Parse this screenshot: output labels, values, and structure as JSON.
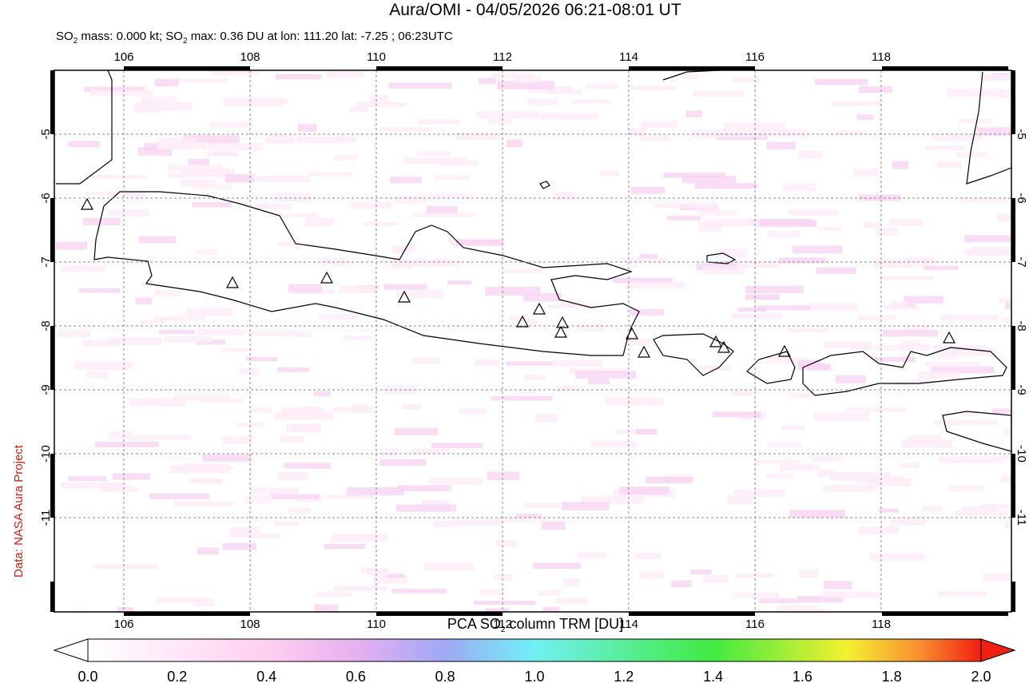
{
  "header": {
    "title": "Aura/OMI - 04/05/2026 06:21-08:01 UT",
    "subtitle": [
      "SO",
      "2",
      " mass: 0.000 kt; SO",
      "2",
      " max: 0.36 DU at lon: 111.20 lat: -7.25 ; 06:23UTC"
    ]
  },
  "map": {
    "lon_ticks": [
      106,
      108,
      110,
      112,
      114,
      116,
      118
    ],
    "lat_ticks": [
      -5,
      -6,
      -7,
      -8,
      -9,
      -10,
      -11
    ]
  },
  "colorbar": {
    "label": [
      "PCA SO",
      "2",
      " column TRM [DU]"
    ],
    "ticks": [
      "0.0",
      "0.2",
      "0.4",
      "0.6",
      "0.8",
      "1.0",
      "1.2",
      "1.4",
      "1.6",
      "1.8",
      "2.0"
    ]
  },
  "credit": "Data: NASA Aura Project"
}
